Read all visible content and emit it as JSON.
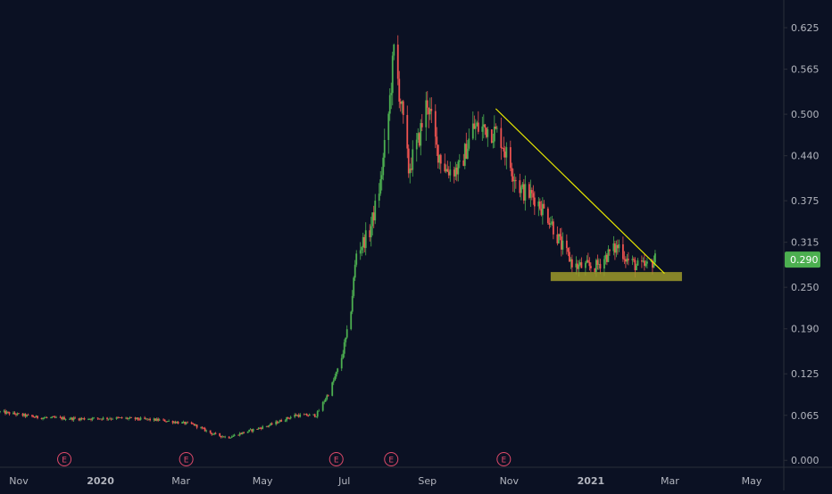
{
  "colors": {
    "background": "#0b1123",
    "up_candle": "#4caf50",
    "down_candle": "#ef5350",
    "trendline": "#e6e600",
    "support_zone": "#9e9a2a",
    "axis_text": "#b2b5be",
    "axis_line": "#2a2e39",
    "price_badge": "#4caf50",
    "earnings_marker": "#e04a6a"
  },
  "chart_data": {
    "type": "candlestick",
    "title": "",
    "xlabel": "",
    "ylabel": "",
    "x_range": [
      "2019-10-18",
      "2021-05-25"
    ],
    "ylim": [
      -0.01,
      0.665
    ],
    "y_ticks": [
      "0.625",
      "0.565",
      "0.500",
      "0.440",
      "0.375",
      "0.315",
      "0.250",
      "0.190",
      "0.125",
      "0.065",
      "0.000"
    ],
    "x_ticks": [
      {
        "date": "2019-11-01",
        "label": "Nov",
        "bold": false
      },
      {
        "date": "2020-01-01",
        "label": "2020",
        "bold": true
      },
      {
        "date": "2020-03-01",
        "label": "Mar",
        "bold": false
      },
      {
        "date": "2020-05-01",
        "label": "May",
        "bold": false
      },
      {
        "date": "2020-07-01",
        "label": "Jul",
        "bold": false
      },
      {
        "date": "2020-09-01",
        "label": "Sep",
        "bold": false
      },
      {
        "date": "2020-11-01",
        "label": "Nov",
        "bold": false
      },
      {
        "date": "2021-01-01",
        "label": "2021",
        "bold": true
      },
      {
        "date": "2021-03-01",
        "label": "Mar",
        "bold": false
      },
      {
        "date": "2021-05-01",
        "label": "May",
        "bold": false
      }
    ],
    "last_price": "0.290",
    "earnings_markers": {
      "label": "E",
      "dates": [
        "2019-12-05",
        "2020-03-05",
        "2020-06-25",
        "2020-08-05",
        "2020-10-28"
      ]
    },
    "trendline": {
      "start": {
        "date": "2020-10-22",
        "value": 0.508
      },
      "end": {
        "date": "2021-02-25",
        "value": 0.27
      }
    },
    "support_zone": {
      "start": "2020-12-02",
      "end": "2021-03-10",
      "low": 0.259,
      "high": 0.272
    },
    "price_path": [
      [
        "2019-10-18",
        0.07
      ],
      [
        "2019-11-15",
        0.062
      ],
      [
        "2019-12-15",
        0.06
      ],
      [
        "2020-01-15",
        0.061
      ],
      [
        "2020-02-15",
        0.058
      ],
      [
        "2020-03-10",
        0.052
      ],
      [
        "2020-03-25",
        0.038
      ],
      [
        "2020-04-05",
        0.033
      ],
      [
        "2020-04-20",
        0.042
      ],
      [
        "2020-05-05",
        0.05
      ],
      [
        "2020-05-25",
        0.065
      ],
      [
        "2020-06-10",
        0.065
      ],
      [
        "2020-06-20",
        0.1
      ],
      [
        "2020-06-28",
        0.14
      ],
      [
        "2020-07-05",
        0.2
      ],
      [
        "2020-07-10",
        0.3
      ],
      [
        "2020-07-20",
        0.33
      ],
      [
        "2020-07-28",
        0.4
      ],
      [
        "2020-08-03",
        0.5
      ],
      [
        "2020-08-07",
        0.59
      ],
      [
        "2020-08-12",
        0.52
      ],
      [
        "2020-08-18",
        0.42
      ],
      [
        "2020-08-25",
        0.46
      ],
      [
        "2020-09-01",
        0.52
      ],
      [
        "2020-09-08",
        0.45
      ],
      [
        "2020-09-15",
        0.42
      ],
      [
        "2020-09-25",
        0.42
      ],
      [
        "2020-10-05",
        0.48
      ],
      [
        "2020-10-15",
        0.48
      ],
      [
        "2020-10-25",
        0.47
      ],
      [
        "2020-11-01",
        0.43
      ],
      [
        "2020-11-10",
        0.39
      ],
      [
        "2020-11-20",
        0.38
      ],
      [
        "2020-12-01",
        0.35
      ],
      [
        "2020-12-10",
        0.31
      ],
      [
        "2020-12-20",
        0.28
      ],
      [
        "2021-01-05",
        0.28
      ],
      [
        "2021-01-15",
        0.3
      ],
      [
        "2021-01-22",
        0.31
      ],
      [
        "2021-01-28",
        0.29
      ],
      [
        "2021-02-05",
        0.28
      ],
      [
        "2021-02-12",
        0.28
      ],
      [
        "2021-02-18",
        0.29
      ]
    ]
  }
}
